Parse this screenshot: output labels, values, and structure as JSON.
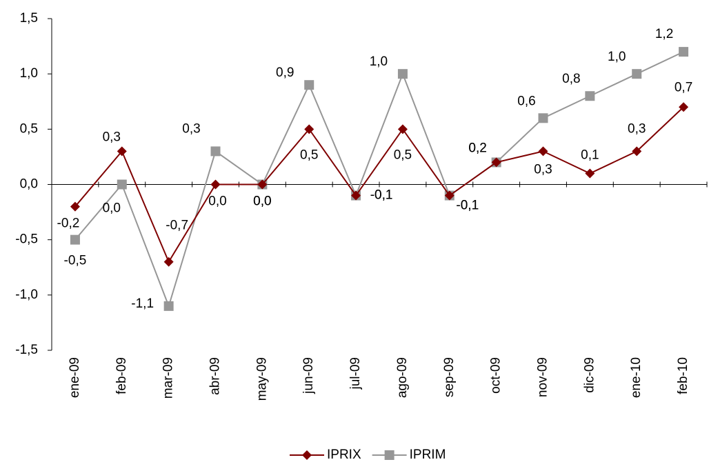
{
  "chart_data": {
    "type": "line",
    "categories": [
      "ene-09",
      "feb-09",
      "mar-09",
      "abr-09",
      "may-09",
      "jun-09",
      "jul-09",
      "ago-09",
      "sep-09",
      "oct-09",
      "nov-09",
      "dic-09",
      "ene-10",
      "feb-10"
    ],
    "series": [
      {
        "name": "IPRIX",
        "color": "#7f0000",
        "marker": "diamond",
        "values": [
          -0.2,
          0.3,
          -0.7,
          0.0,
          0.0,
          0.5,
          -0.1,
          0.5,
          -0.1,
          0.2,
          0.3,
          0.1,
          0.3,
          0.7
        ],
        "value_labels": [
          "-0,2",
          "0,3",
          "-0,7",
          "0,0",
          "0,0",
          "0,5",
          "-0,1",
          "0,5",
          "-0,1",
          "0,2",
          "0,3",
          "0,1",
          "0,3",
          "0,7"
        ]
      },
      {
        "name": "IPRIM",
        "color": "#969696",
        "marker": "square",
        "values": [
          -0.5,
          0.0,
          -1.1,
          0.3,
          0.0,
          0.9,
          -0.1,
          1.0,
          -0.1,
          0.2,
          0.6,
          0.8,
          1.0,
          1.2
        ],
        "value_labels": [
          "-0,5",
          "0,0",
          "-1,1",
          "0,3",
          "0,0",
          "0,9",
          "-0,1",
          "1,0",
          "-0,1",
          "0,2",
          "0,6",
          "0,8",
          "1,0",
          "1,2"
        ]
      }
    ],
    "ylim": [
      -1.5,
      1.5
    ],
    "yticks": [
      {
        "value": -1.5,
        "label": "-1,5"
      },
      {
        "value": -1.0,
        "label": "-1,0"
      },
      {
        "value": -0.5,
        "label": "-0,5"
      },
      {
        "value": 0,
        "label": "0,0"
      },
      {
        "value": 0.5,
        "label": "0,5"
      },
      {
        "value": 1.0,
        "label": "1,0"
      },
      {
        "value": 1.5,
        "label": "1,5"
      }
    ],
    "grid": false,
    "legend": "bottom"
  }
}
